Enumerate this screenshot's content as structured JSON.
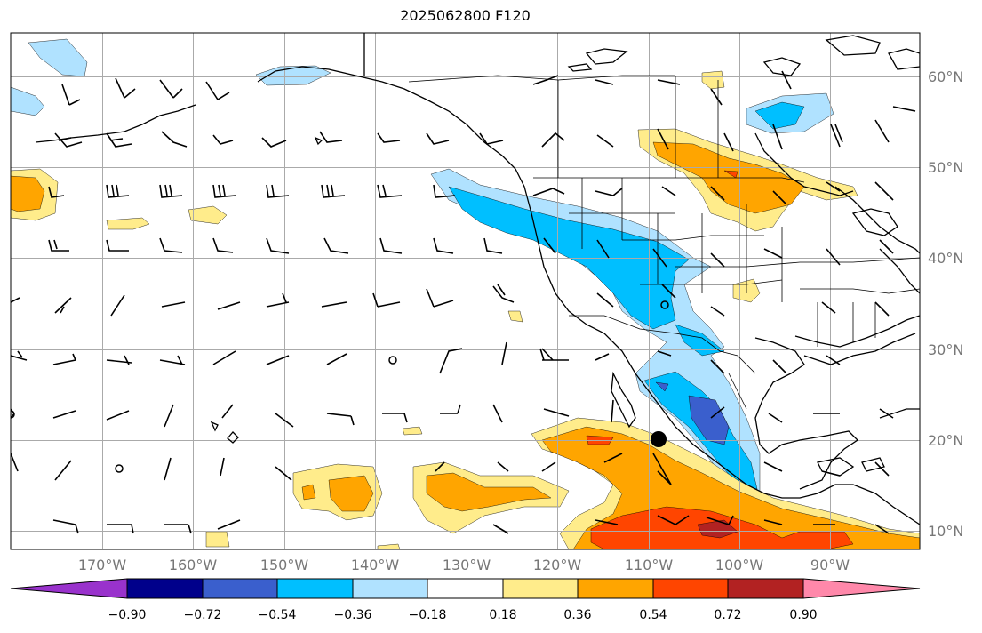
{
  "title": "2025062800 F120",
  "lat_labels": [
    "60°N",
    "50°N",
    "40°N",
    "30°N",
    "20°N",
    "10°N"
  ],
  "lon_labels": [
    "170°W",
    "160°W",
    "150°W",
    "140°W",
    "130°W",
    "120°W",
    "110°W",
    "100°W",
    "90°W"
  ],
  "colorbar": {
    "ticks": [
      "−0.90",
      "−0.72",
      "−0.54",
      "−0.36",
      "−0.18",
      "0.18",
      "0.36",
      "0.54",
      "0.72",
      "0.90"
    ],
    "colors": [
      "#9932cc",
      "#00008b",
      "#3a5fcd",
      "#00bfff",
      "#b0e2ff",
      "#ffffff",
      "#ffec8b",
      "#ffa500",
      "#ff4500",
      "#b22222",
      "#ff88aa"
    ]
  },
  "map_colors": {
    "neg_light": "#b0e2ff",
    "neg_mid": "#00bfff",
    "neg_strong": "#3a5fcd",
    "pos_light": "#ffec8b",
    "pos_mid": "#ffa500",
    "pos_strong": "#ff4500",
    "pos_max": "#b22222"
  },
  "marker": "filled-circle-marker"
}
